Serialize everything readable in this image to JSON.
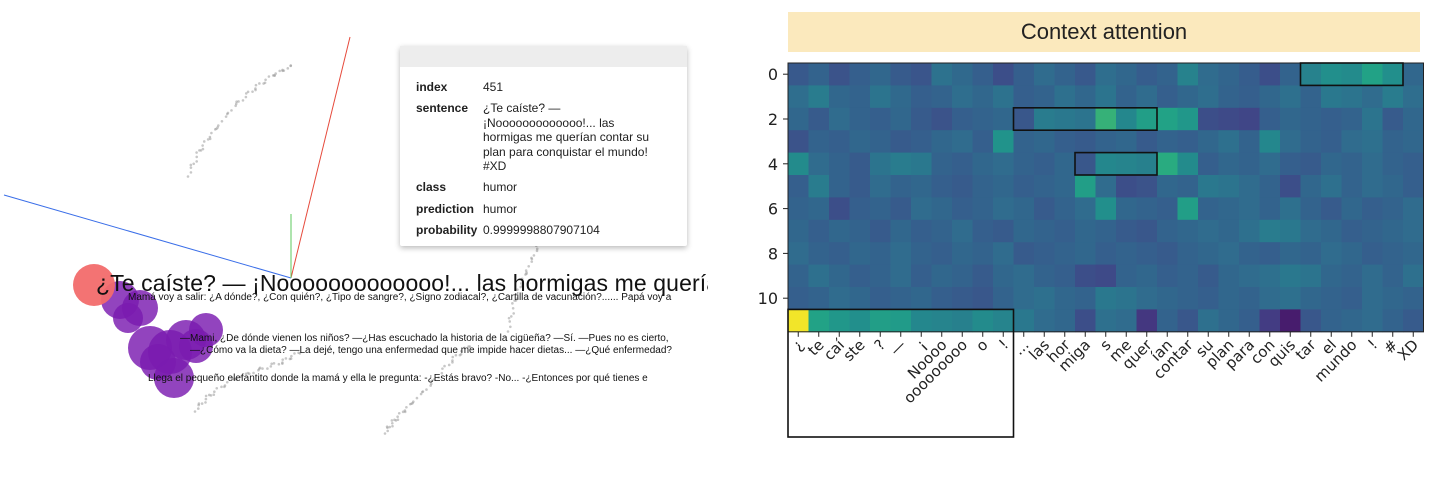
{
  "projector": {
    "info": {
      "index_key": "index",
      "index_val": "451",
      "sentence_key": "sentence",
      "sentence_val": "¿Te caíste? — ¡Nooooooooooooo!... las hormigas me querían contar su plan para conquistar el mundo! #XD",
      "class_key": "class",
      "class_val": "humor",
      "prediction_key": "prediction",
      "prediction_val": "humor",
      "probability_key": "probability",
      "probability_val": "0.9999998807907104"
    },
    "highlight_label": "¿Te caíste? — ¡Nooooooooooooo!... las hormigas me querían conta",
    "neighbor_labels": [
      "Mamá voy a salir: ¿A dónde?, ¿Con quién?, ¿Tipo de sangre?, ¿Signo zodiacal?, ¿Cartilla de vacunación?......    Papá voy a",
      "—Mami, ¿De dónde vienen los niños?   —¿Has escuchado la historia de la cigüeña?   —Sí.   —Pues no es cierto,",
      "—¿Cómo va la dieta?  —La dejé, tengo una enfermedad que me impide hacer dietas...  —¿Qué enfermedad?",
      "Llega el pequeño elefantito donde la mamá y ella le pregunta: -¿Estás bravo? -No... -¿Entonces por qué tienes e"
    ],
    "colors": {
      "highlight": "#f26b6b",
      "neighbor": "#7a1bb0"
    }
  },
  "attention": {
    "title": "Context attention",
    "colormap": "viridis",
    "chart_data": {
      "type": "heatmap",
      "title": "Context attention",
      "y_ticks": [
        "0",
        "2",
        "4",
        "6",
        "8",
        "10"
      ],
      "x_tokens": [
        "¿",
        "te",
        "caí",
        "ste",
        "?",
        "—",
        "¡",
        "Noooo",
        "ooooooooo",
        "o",
        "!",
        "...",
        "las",
        "hor",
        "miga",
        "s",
        "me",
        "quer",
        "ían",
        "contar",
        "su",
        "plan",
        "para",
        "con",
        "quis",
        "tar",
        "el",
        "mundo",
        "!",
        "#",
        "XD"
      ],
      "rows": 12,
      "values": [
        [
          0.35,
          0.4,
          0.32,
          0.38,
          0.42,
          0.36,
          0.33,
          0.47,
          0.43,
          0.38,
          0.3,
          0.38,
          0.44,
          0.4,
          0.35,
          0.45,
          0.42,
          0.37,
          0.4,
          0.55,
          0.44,
          0.41,
          0.37,
          0.3,
          0.4,
          0.55,
          0.62,
          0.6,
          0.72,
          0.62,
          0.42
        ],
        [
          0.45,
          0.52,
          0.42,
          0.4,
          0.48,
          0.43,
          0.38,
          0.4,
          0.45,
          0.42,
          0.47,
          0.38,
          0.4,
          0.46,
          0.42,
          0.48,
          0.4,
          0.44,
          0.38,
          0.42,
          0.45,
          0.4,
          0.38,
          0.42,
          0.46,
          0.4,
          0.5,
          0.48,
          0.44,
          0.52,
          0.45
        ],
        [
          0.42,
          0.36,
          0.44,
          0.4,
          0.38,
          0.42,
          0.36,
          0.32,
          0.38,
          0.4,
          0.42,
          0.34,
          0.52,
          0.5,
          0.48,
          0.78,
          0.58,
          0.7,
          0.72,
          0.66,
          0.3,
          0.28,
          0.26,
          0.38,
          0.42,
          0.4,
          0.38,
          0.4,
          0.48,
          0.36,
          0.42
        ],
        [
          0.32,
          0.4,
          0.38,
          0.42,
          0.4,
          0.36,
          0.38,
          0.42,
          0.44,
          0.38,
          0.64,
          0.4,
          0.42,
          0.38,
          0.36,
          0.4,
          0.42,
          0.36,
          0.4,
          0.38,
          0.42,
          0.46,
          0.4,
          0.58,
          0.44,
          0.4,
          0.38,
          0.44,
          0.46,
          0.4,
          0.42
        ],
        [
          0.6,
          0.44,
          0.4,
          0.36,
          0.48,
          0.52,
          0.5,
          0.4,
          0.38,
          0.42,
          0.44,
          0.4,
          0.38,
          0.42,
          0.34,
          0.58,
          0.56,
          0.54,
          0.76,
          0.6,
          0.38,
          0.42,
          0.4,
          0.44,
          0.38,
          0.36,
          0.42,
          0.4,
          0.44,
          0.4,
          0.38
        ],
        [
          0.38,
          0.52,
          0.4,
          0.36,
          0.44,
          0.4,
          0.42,
          0.38,
          0.36,
          0.4,
          0.42,
          0.38,
          0.4,
          0.42,
          0.7,
          0.44,
          0.3,
          0.32,
          0.42,
          0.4,
          0.5,
          0.48,
          0.44,
          0.4,
          0.3,
          0.42,
          0.46,
          0.4,
          0.44,
          0.42,
          0.38
        ],
        [
          0.4,
          0.42,
          0.3,
          0.38,
          0.4,
          0.36,
          0.44,
          0.42,
          0.38,
          0.4,
          0.44,
          0.42,
          0.36,
          0.4,
          0.44,
          0.62,
          0.42,
          0.4,
          0.38,
          0.7,
          0.4,
          0.42,
          0.44,
          0.4,
          0.46,
          0.4,
          0.36,
          0.42,
          0.38,
          0.4,
          0.44
        ],
        [
          0.42,
          0.38,
          0.42,
          0.4,
          0.36,
          0.42,
          0.38,
          0.4,
          0.44,
          0.38,
          0.36,
          0.42,
          0.4,
          0.38,
          0.42,
          0.4,
          0.36,
          0.34,
          0.4,
          0.42,
          0.44,
          0.42,
          0.46,
          0.52,
          0.5,
          0.44,
          0.42,
          0.38,
          0.4,
          0.42,
          0.44
        ],
        [
          0.44,
          0.4,
          0.38,
          0.42,
          0.4,
          0.44,
          0.4,
          0.38,
          0.42,
          0.4,
          0.44,
          0.36,
          0.38,
          0.4,
          0.42,
          0.38,
          0.4,
          0.38,
          0.36,
          0.4,
          0.42,
          0.44,
          0.4,
          0.38,
          0.42,
          0.4,
          0.44,
          0.42,
          0.38,
          0.4,
          0.42
        ],
        [
          0.4,
          0.46,
          0.42,
          0.38,
          0.4,
          0.44,
          0.38,
          0.42,
          0.4,
          0.36,
          0.42,
          0.44,
          0.4,
          0.38,
          0.3,
          0.28,
          0.4,
          0.42,
          0.38,
          0.4,
          0.36,
          0.42,
          0.44,
          0.46,
          0.5,
          0.48,
          0.42,
          0.4,
          0.44,
          0.4,
          0.46
        ],
        [
          0.38,
          0.4,
          0.44,
          0.42,
          0.38,
          0.4,
          0.42,
          0.38,
          0.36,
          0.34,
          0.4,
          0.44,
          0.46,
          0.42,
          0.4,
          0.5,
          0.48,
          0.44,
          0.42,
          0.4,
          0.38,
          0.42,
          0.4,
          0.44,
          0.46,
          0.42,
          0.4,
          0.38,
          0.44,
          0.42,
          0.4
        ],
        [
          0.99,
          0.72,
          0.66,
          0.62,
          0.7,
          0.68,
          0.58,
          0.56,
          0.54,
          0.6,
          0.56,
          0.5,
          0.44,
          0.42,
          0.3,
          0.46,
          0.44,
          0.2,
          0.4,
          0.34,
          0.46,
          0.42,
          0.38,
          0.22,
          0.1,
          0.34,
          0.4,
          0.42,
          0.44,
          0.4,
          0.36
        ]
      ],
      "highlight_boxes": [
        {
          "row_start": 0,
          "row_end": 0,
          "col_start": 25,
          "col_end": 29
        },
        {
          "row_start": 2,
          "row_end": 2,
          "col_start": 11,
          "col_end": 17
        },
        {
          "row_start": 4,
          "row_end": 4,
          "col_start": 14,
          "col_end": 17
        },
        {
          "row_start": 11,
          "row_end": 11,
          "col_start": 0,
          "col_end": 10,
          "include_labels": true
        }
      ]
    }
  }
}
